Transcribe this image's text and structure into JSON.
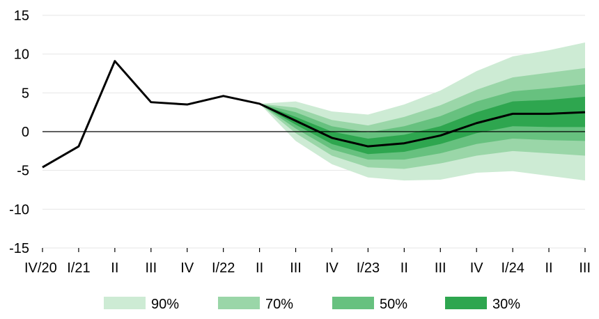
{
  "chart_data": {
    "type": "area",
    "title": "",
    "xlabel": "",
    "ylabel": "",
    "ylim": [
      -15,
      15
    ],
    "yticks": [
      -15,
      -10,
      -5,
      0,
      5,
      10,
      15
    ],
    "grid": true,
    "legend_position": "bottom",
    "categories": [
      "IV/20",
      "I/21",
      "II",
      "III",
      "IV",
      "I/22",
      "II",
      "III",
      "IV",
      "I/23",
      "II",
      "III",
      "IV",
      "I/24",
      "II",
      "III"
    ],
    "series": [
      {
        "role": "line",
        "values": [
          -4.6,
          -1.9,
          9.1,
          3.8,
          3.5,
          4.6,
          3.6,
          1.4,
          -0.8,
          -1.9,
          -1.5,
          -0.5,
          1.1,
          2.3,
          2.3,
          2.5
        ]
      }
    ],
    "fan": {
      "start_index": 6,
      "bands": [
        {
          "name": "90%",
          "color": "#cdebd4",
          "lower": [
            3.6,
            -1.2,
            -4.2,
            -5.9,
            -6.3,
            -6.2,
            -5.3,
            -5.1,
            -5.7,
            -6.3
          ],
          "upper": [
            3.6,
            3.9,
            2.6,
            2.2,
            3.5,
            5.3,
            7.8,
            9.7,
            10.5,
            11.5
          ]
        },
        {
          "name": "70%",
          "color": "#9ad6a8",
          "lower": [
            3.6,
            -0.2,
            -3.1,
            -4.6,
            -4.8,
            -4.1,
            -3.1,
            -2.5,
            -2.8,
            -3.1
          ],
          "upper": [
            3.6,
            3.1,
            1.5,
            0.8,
            1.9,
            3.4,
            5.4,
            7.0,
            7.6,
            8.2
          ]
        },
        {
          "name": "50%",
          "color": "#67c17f",
          "lower": [
            3.6,
            0.4,
            -2.3,
            -3.6,
            -3.6,
            -2.8,
            -1.6,
            -0.9,
            -1.1,
            -1.2
          ],
          "upper": [
            3.6,
            2.5,
            0.7,
            -0.1,
            0.7,
            2.0,
            3.9,
            5.2,
            5.6,
            6.1
          ]
        },
        {
          "name": "30%",
          "color": "#2ea64f",
          "lower": [
            3.6,
            0.9,
            -1.6,
            -2.9,
            -2.6,
            -1.6,
            -0.2,
            0.7,
            0.6,
            0.6
          ],
          "upper": [
            3.6,
            1.9,
            0.0,
            -0.9,
            -0.4,
            0.7,
            2.5,
            3.9,
            4.1,
            4.5
          ]
        }
      ]
    },
    "zero_line": true,
    "colors": {
      "line": "#000000",
      "grid": "#e6e6e6",
      "zero": "#000000"
    }
  }
}
